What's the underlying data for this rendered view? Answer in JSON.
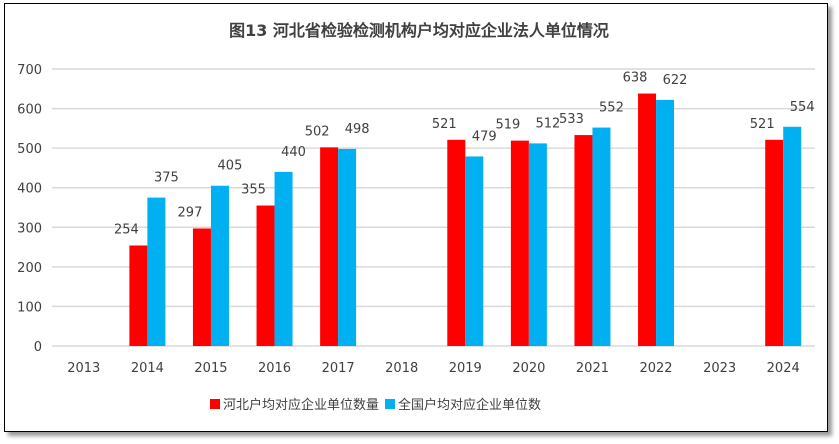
{
  "chart_data": {
    "type": "bar",
    "title": "图13 河北省检验检测机构户均对应企业法人单位情况",
    "categories": [
      "2013",
      "2014",
      "2015",
      "2016",
      "2017",
      "2018",
      "2019",
      "2020",
      "2021",
      "2022",
      "2023",
      "2024"
    ],
    "series": [
      {
        "name": "河北户均对应企业单位数量",
        "color": "#ff0000",
        "values": [
          null,
          254,
          297,
          355,
          502,
          null,
          521,
          519,
          533,
          638,
          null,
          521
        ]
      },
      {
        "name": "全国户均对应企业单位数",
        "color": "#00b0f0",
        "values": [
          null,
          375,
          405,
          440,
          498,
          null,
          479,
          512,
          552,
          622,
          null,
          554
        ]
      }
    ],
    "ylim": [
      0,
      700
    ],
    "yticks": [
      0,
      100,
      200,
      300,
      400,
      500,
      600,
      700
    ],
    "grid": true,
    "legend": "bottom"
  }
}
